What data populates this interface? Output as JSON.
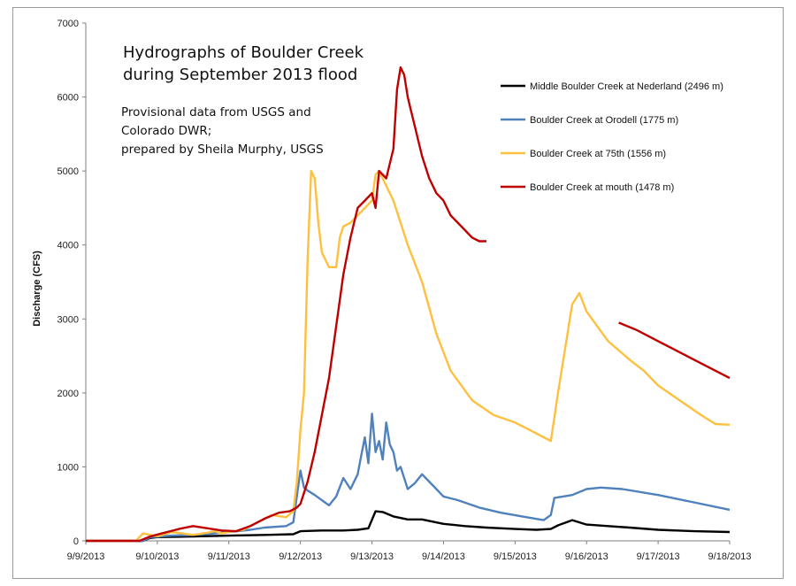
{
  "chart_data": {
    "type": "line",
    "title_lines": [
      "Hydrographs of Boulder Creek",
      "during September 2013 flood"
    ],
    "annotation_lines": [
      "Provisional data from USGS and",
      "Colorado DWR;",
      "prepared by Sheila Murphy, USGS"
    ],
    "xlabel": "",
    "ylabel": "Discharge (CFS)",
    "ylim": [
      0,
      7000
    ],
    "yticks": [
      0,
      1000,
      2000,
      3000,
      4000,
      5000,
      6000,
      7000
    ],
    "xlim": [
      0,
      9
    ],
    "xtick_labels": [
      "9/9/2013",
      "9/10/2013",
      "9/11/2013",
      "9/12/2013",
      "9/13/2013",
      "9/14/2013",
      "9/15/2013",
      "9/16/2013",
      "9/17/2013",
      "9/18/2013"
    ],
    "grid": false,
    "legend_position": "top-right",
    "series": [
      {
        "name": "Middle Boulder Creek at Nederland (2496 m)",
        "color": "#000000",
        "x": [
          0.0,
          0.8,
          0.9,
          1.0,
          1.5,
          2.0,
          2.5,
          2.9,
          3.0,
          3.3,
          3.6,
          3.8,
          3.95,
          4.05,
          4.15,
          4.3,
          4.5,
          4.7,
          5.0,
          5.3,
          5.6,
          6.0,
          6.3,
          6.5,
          6.6,
          6.8,
          7.0,
          7.3,
          7.6,
          8.0,
          8.5,
          9.0
        ],
        "y": [
          0,
          0,
          40,
          50,
          60,
          70,
          80,
          90,
          130,
          140,
          140,
          150,
          170,
          400,
          390,
          330,
          290,
          290,
          230,
          200,
          180,
          160,
          150,
          160,
          210,
          280,
          220,
          200,
          180,
          150,
          130,
          120
        ]
      },
      {
        "name": "Boulder Creek at Orodell (1775 m)",
        "color": "#4f81bd",
        "x": [
          0.0,
          0.8,
          0.9,
          1.2,
          1.5,
          1.8,
          2.0,
          2.3,
          2.5,
          2.8,
          2.9,
          2.95,
          3.0,
          3.05,
          3.1,
          3.2,
          3.4,
          3.5,
          3.6,
          3.7,
          3.8,
          3.85,
          3.9,
          3.95,
          4.0,
          4.05,
          4.1,
          4.15,
          4.2,
          4.25,
          4.3,
          4.35,
          4.4,
          4.5,
          4.6,
          4.7,
          4.8,
          4.9,
          5.0,
          5.2,
          5.5,
          5.8,
          6.1,
          6.4,
          6.5,
          6.55,
          6.8,
          7.0,
          7.2,
          7.5,
          8.0,
          8.5,
          9.0
        ],
        "y": [
          0,
          0,
          50,
          70,
          80,
          100,
          120,
          150,
          180,
          200,
          250,
          600,
          950,
          720,
          680,
          620,
          480,
          600,
          850,
          700,
          900,
          1150,
          1400,
          1050,
          1720,
          1200,
          1350,
          1100,
          1600,
          1300,
          1200,
          950,
          1000,
          700,
          780,
          900,
          800,
          700,
          600,
          550,
          450,
          380,
          330,
          280,
          350,
          580,
          620,
          700,
          720,
          700,
          620,
          520,
          420
        ]
      },
      {
        "name": "Boulder Creek at 75th (1556 m)",
        "color": "#ffc040",
        "x": [
          0.0,
          0.7,
          0.8,
          1.0,
          1.2,
          1.5,
          1.7,
          1.8,
          1.9,
          2.0,
          2.2,
          2.4,
          2.6,
          2.8,
          2.9,
          2.95,
          3.0,
          3.05,
          3.1,
          3.15,
          3.2,
          3.25,
          3.3,
          3.4,
          3.5,
          3.55,
          3.6,
          3.7,
          3.8,
          3.9,
          4.0,
          4.05,
          4.1,
          4.2,
          4.3,
          4.4,
          4.5,
          4.7,
          4.9,
          5.1,
          5.4,
          5.7,
          6.0,
          6.2,
          6.4,
          6.5,
          6.6,
          6.8,
          6.9,
          7.0,
          7.3,
          7.6,
          7.8,
          7.9,
          8.0,
          8.3,
          8.6,
          8.8,
          9.0
        ],
        "y": [
          0,
          0,
          100,
          60,
          120,
          80,
          110,
          130,
          100,
          120,
          150,
          250,
          350,
          320,
          400,
          800,
          1500,
          2000,
          3800,
          5000,
          4900,
          4300,
          3900,
          3700,
          3700,
          4100,
          4250,
          4300,
          4400,
          4500,
          4600,
          4950,
          5000,
          4800,
          4600,
          4300,
          4000,
          3500,
          2800,
          2300,
          1900,
          1700,
          1600,
          1500,
          1400,
          1350,
          2000,
          3200,
          3350,
          3100,
          2700,
          2450,
          2300,
          2200,
          2100,
          1900,
          1700,
          1580,
          1570
        ]
      },
      {
        "name": "Boulder Creek at mouth (1478 m)",
        "color": "#c00000",
        "segments": [
          {
            "x": [
              0.0,
              0.75,
              0.9,
              1.1,
              1.3,
              1.5,
              1.7,
              1.9,
              2.1,
              2.3,
              2.5,
              2.7,
              2.85,
              2.95,
              3.0,
              3.1,
              3.2,
              3.3,
              3.4,
              3.5,
              3.6,
              3.7,
              3.8,
              3.9,
              4.0,
              4.05,
              4.1,
              4.2,
              4.3,
              4.35,
              4.4,
              4.45,
              4.5,
              4.55,
              4.6,
              4.7,
              4.8,
              4.9,
              5.0,
              5.1,
              5.2,
              5.3,
              5.4,
              5.5,
              5.6
            ],
            "y": [
              0,
              0,
              60,
              110,
              160,
              200,
              170,
              140,
              130,
              200,
              300,
              380,
              400,
              450,
              500,
              800,
              1200,
              1700,
              2200,
              2900,
              3600,
              4100,
              4500,
              4600,
              4700,
              4500,
              5000,
              4900,
              5300,
              6100,
              6400,
              6300,
              6000,
              5800,
              5600,
              5200,
              4900,
              4700,
              4600,
              4400,
              4300,
              4200,
              4100,
              4050,
              4050
            ]
          },
          {
            "x": [
              7.45,
              7.7,
              8.0,
              8.3,
              8.6,
              9.0
            ],
            "y": [
              2950,
              2850,
              2700,
              2550,
              2400,
              2200
            ]
          }
        ]
      }
    ]
  }
}
